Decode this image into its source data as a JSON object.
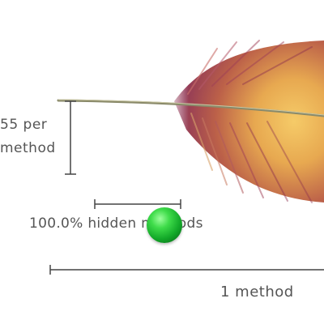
{
  "labels": {
    "per_line1": "55 per",
    "per_line2": "method",
    "hidden": "100.0% hidden methods",
    "scale": "1 method"
  },
  "icons": {
    "feather": "feather-icon",
    "ball": "green-sphere-icon"
  },
  "colors": {
    "feather_deep": "#8c2f4e",
    "feather_gold": "#e8b04a",
    "feather_light": "#f7d98a",
    "rachis": "#8a8a6a",
    "line": "#444444",
    "text": "#555555",
    "ball": "#22c03a"
  }
}
